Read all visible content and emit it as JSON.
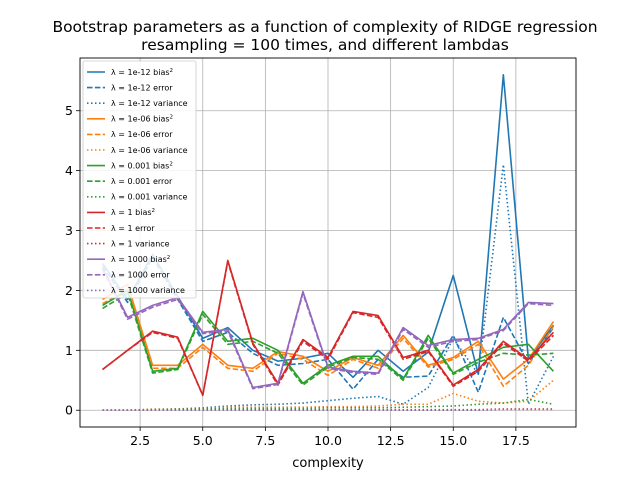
{
  "chart_data": {
    "type": "line",
    "title": "Bootstrap parameters as a function of complexity of RIDGE regression",
    "subtitle": "resampling = 100 times, and different lambdas",
    "xlabel": "complexity",
    "ylabel": "",
    "xlim": [
      0.1,
      19.9
    ],
    "ylim": [
      -0.28,
      5.88
    ],
    "xticks": [
      2.5,
      5.0,
      7.5,
      10.0,
      12.5,
      15.0,
      17.5
    ],
    "yticks": [
      0,
      1,
      2,
      3,
      4,
      5
    ],
    "grid": true,
    "legend_position": "top-left",
    "x": [
      1,
      2,
      3,
      4,
      5,
      6,
      7,
      8,
      9,
      10,
      11,
      12,
      13,
      14,
      15,
      16,
      17,
      18,
      19
    ],
    "series": [
      {
        "name": "λ = 1e-12 bias²",
        "lambda": "1e-12",
        "metric": "bias",
        "color": "#1f77b4",
        "dash": "solid",
        "values": [
          2.45,
          1.85,
          2.6,
          1.9,
          1.2,
          1.38,
          1.0,
          0.82,
          0.87,
          0.95,
          0.55,
          1.0,
          0.65,
          0.97,
          2.25,
          0.6,
          5.6,
          0.85,
          1.42
        ]
      },
      {
        "name": "λ = 1e-12 error",
        "lambda": "1e-12",
        "metric": "error",
        "color": "#1f77b4",
        "dash": "dashed",
        "values": [
          2.4,
          1.8,
          2.55,
          1.85,
          1.15,
          1.3,
          0.95,
          0.75,
          0.78,
          0.85,
          0.35,
          0.85,
          0.55,
          0.57,
          1.25,
          0.3,
          1.55,
          0.78,
          1.38
        ]
      },
      {
        "name": "λ = 1e-12 variance",
        "lambda": "1e-12",
        "metric": "variance",
        "color": "#1f77b4",
        "dash": "dotted",
        "values": [
          0.0,
          0.0,
          0.01,
          0.02,
          0.04,
          0.07,
          0.09,
          0.1,
          0.12,
          0.16,
          0.2,
          0.23,
          0.1,
          0.38,
          1.2,
          0.6,
          4.1,
          0.1,
          0.9
        ]
      },
      {
        "name": "λ = 1e-06 bias²",
        "lambda": "1e-06",
        "metric": "bias",
        "color": "#ff7f0e",
        "dash": "solid",
        "values": [
          1.85,
          2.1,
          0.75,
          0.75,
          1.1,
          0.75,
          0.7,
          0.98,
          0.9,
          0.65,
          0.88,
          0.75,
          1.25,
          0.75,
          0.88,
          1.15,
          0.52,
          0.85,
          1.48
        ]
      },
      {
        "name": "λ = 1e-06 error",
        "lambda": "1e-06",
        "metric": "error",
        "color": "#ff7f0e",
        "dash": "dashed",
        "values": [
          1.78,
          2.0,
          0.7,
          0.7,
          1.05,
          0.7,
          0.65,
          0.95,
          0.85,
          0.58,
          0.85,
          0.7,
          1.2,
          0.72,
          0.85,
          1.1,
          0.4,
          0.75,
          1.4
        ]
      },
      {
        "name": "λ = 1e-06 variance",
        "lambda": "1e-06",
        "metric": "variance",
        "color": "#ff7f0e",
        "dash": "dotted",
        "values": [
          0.0,
          0.0,
          0.02,
          0.02,
          0.03,
          0.05,
          0.05,
          0.05,
          0.05,
          0.06,
          0.06,
          0.07,
          0.1,
          0.1,
          0.28,
          0.15,
          0.12,
          0.15,
          0.5
        ]
      },
      {
        "name": "λ = 0.001 bias²",
        "lambda": "0.001",
        "metric": "bias",
        "color": "#2ca02c",
        "dash": "solid",
        "values": [
          1.75,
          2.0,
          0.65,
          0.7,
          1.65,
          1.15,
          1.2,
          1.0,
          0.45,
          0.75,
          0.9,
          0.9,
          0.52,
          1.25,
          0.62,
          0.85,
          1.05,
          1.1,
          0.65
        ]
      },
      {
        "name": "λ = 0.001 error",
        "lambda": "0.001",
        "metric": "error",
        "color": "#2ca02c",
        "dash": "dashed",
        "values": [
          1.7,
          1.95,
          0.62,
          0.68,
          1.6,
          1.1,
          1.15,
          0.95,
          0.42,
          0.72,
          0.88,
          0.85,
          0.5,
          1.2,
          0.6,
          0.8,
          0.95,
          0.92,
          0.95
        ]
      },
      {
        "name": "λ = 0.001 variance",
        "lambda": "0.001",
        "metric": "variance",
        "color": "#2ca02c",
        "dash": "dotted",
        "values": [
          0.0,
          0.0,
          0.01,
          0.02,
          0.03,
          0.03,
          0.03,
          0.03,
          0.03,
          0.04,
          0.04,
          0.04,
          0.05,
          0.06,
          0.07,
          0.1,
          0.12,
          0.18,
          0.1
        ]
      },
      {
        "name": "λ = 1 bias²",
        "lambda": "1",
        "metric": "bias",
        "color": "#d62728",
        "dash": "solid",
        "values": [
          0.68,
          1.0,
          1.32,
          1.22,
          0.25,
          2.5,
          1.12,
          0.45,
          1.18,
          0.88,
          1.65,
          1.58,
          0.88,
          1.0,
          0.42,
          0.68,
          1.15,
          0.85,
          1.3
        ]
      },
      {
        "name": "λ = 1 error",
        "lambda": "1",
        "metric": "error",
        "color": "#d62728",
        "dash": "dashed",
        "values": [
          0.68,
          1.0,
          1.3,
          1.2,
          0.25,
          2.48,
          1.1,
          0.42,
          1.15,
          0.85,
          1.63,
          1.55,
          0.85,
          0.98,
          0.4,
          0.65,
          1.12,
          0.82,
          1.25
        ]
      },
      {
        "name": "λ = 1 variance",
        "lambda": "1",
        "metric": "variance",
        "color": "#d62728",
        "dash": "dotted",
        "values": [
          0.0,
          0.0,
          0.0,
          0.01,
          0.01,
          0.01,
          0.01,
          0.01,
          0.01,
          0.01,
          0.01,
          0.01,
          0.01,
          0.01,
          0.01,
          0.01,
          0.02,
          0.02,
          0.02
        ]
      },
      {
        "name": "λ = 1000 bias²",
        "lambda": "1000",
        "metric": "bias",
        "color": "#9467bd",
        "dash": "solid",
        "values": [
          2.38,
          1.55,
          1.75,
          1.88,
          1.3,
          1.35,
          0.38,
          0.45,
          1.98,
          0.72,
          0.65,
          0.62,
          1.38,
          1.08,
          1.18,
          1.2,
          1.35,
          1.8,
          1.78
        ]
      },
      {
        "name": "λ = 1000 error",
        "lambda": "1000",
        "metric": "error",
        "color": "#9467bd",
        "dash": "dashed",
        "values": [
          2.35,
          1.52,
          1.72,
          1.85,
          1.28,
          1.32,
          0.36,
          0.43,
          1.95,
          0.7,
          0.63,
          0.6,
          1.35,
          1.05,
          1.15,
          1.18,
          1.33,
          1.78,
          1.75
        ]
      },
      {
        "name": "λ = 1000 variance",
        "lambda": "1000",
        "metric": "variance",
        "color": "#9467bd",
        "dash": "dotted",
        "values": [
          0.0,
          0.0,
          0.0,
          0.0,
          0.0,
          0.0,
          0.0,
          0.0,
          0.0,
          0.0,
          0.0,
          0.0,
          0.0,
          0.0,
          0.0,
          0.0,
          0.01,
          0.01,
          0.01
        ]
      }
    ]
  }
}
